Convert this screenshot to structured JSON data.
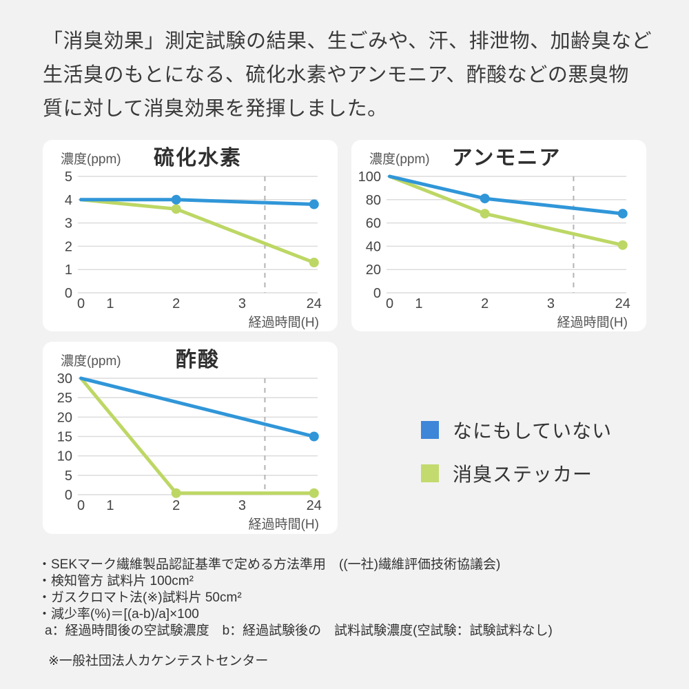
{
  "page": {
    "background_color": "#f2f2f2",
    "panel_color": "#ffffff"
  },
  "heading": {
    "lines": [
      "「消臭効果」測定試験の結果、生ごみや、汗、排泄物、加齢臭など",
      "生活臭のもとになる、硫化水素やアンモニア、酢酸などの悪臭物",
      "質に対して消臭効果を発揮しました。"
    ]
  },
  "chart_data": [
    {
      "type": "line",
      "title": "硫化水素",
      "y_axis_label": "濃度(ppm)",
      "x_axis_label": "経過時間(H)",
      "y_max": 5,
      "y_ticks": [
        5,
        4,
        3,
        2,
        1,
        0
      ],
      "x_ticks": [
        "0",
        "1",
        "2",
        "3",
        "24"
      ],
      "dashed_guide_x_frac": 0.78,
      "grid": "horizontal",
      "series": [
        {
          "name": "なにもしていない",
          "color": "#3096D8",
          "values": [
            4,
            null,
            4,
            null,
            3.8
          ],
          "markers": [
            2,
            4
          ]
        },
        {
          "name": "消臭ステッカー",
          "color": "#BDD765",
          "values": [
            4,
            null,
            3.6,
            null,
            1.3
          ],
          "markers": [
            2,
            4
          ]
        }
      ]
    },
    {
      "type": "line",
      "title": "アンモニア",
      "y_axis_label": "濃度(ppm)",
      "x_axis_label": "経過時間(H)",
      "y_max": 100,
      "y_ticks": [
        100,
        80,
        60,
        40,
        20,
        0
      ],
      "x_ticks": [
        "0",
        "1",
        "2",
        "3",
        "24"
      ],
      "dashed_guide_x_frac": 0.78,
      "grid": "horizontal",
      "series": [
        {
          "name": "なにもしていない",
          "color": "#3096D8",
          "values": [
            100,
            null,
            81,
            null,
            68
          ],
          "markers": [
            2,
            4
          ]
        },
        {
          "name": "消臭ステッカー",
          "color": "#BDD765",
          "values": [
            100,
            null,
            68,
            null,
            41
          ],
          "markers": [
            2,
            4
          ]
        }
      ]
    },
    {
      "type": "line",
      "title": "酢酸",
      "y_axis_label": "濃度(ppm)",
      "x_axis_label": "経過時間(H)",
      "y_max": 30,
      "y_ticks": [
        30,
        25,
        20,
        15,
        10,
        5,
        0
      ],
      "x_ticks": [
        "0",
        "1",
        "2",
        "3",
        "24"
      ],
      "dashed_guide_x_frac": 0.78,
      "grid": "horizontal",
      "series": [
        {
          "name": "なにもしていない",
          "color": "#3096D8",
          "values": [
            30,
            null,
            null,
            null,
            15
          ],
          "markers": [
            4
          ]
        },
        {
          "name": "消臭ステッカー",
          "color": "#BDD765",
          "values": [
            30,
            null,
            0.4,
            null,
            0.4
          ],
          "markers": [
            2,
            4
          ]
        }
      ]
    }
  ],
  "legend": {
    "items": [
      {
        "label": "なにもしていない",
        "color": "#3D86D8"
      },
      {
        "label": "消臭ステッカー",
        "color": "#C3DA6F"
      }
    ]
  },
  "footnotes": {
    "lines": [
      "・SEKマーク繊維製品認証基準で定める方法準用　((一社)繊維評価技術協議会)",
      "・検知管方 試料片 100cm²",
      "・ガスクロマト法(※)試料片 50cm²",
      "・減少率(%)＝[(a-b)/a]×100",
      "a：経過時間後の空試験濃度　b：経過試験後の　試料試験濃度(空試験：試験試料なし)"
    ],
    "source": "※一般社団法人カケンテストセンター"
  }
}
